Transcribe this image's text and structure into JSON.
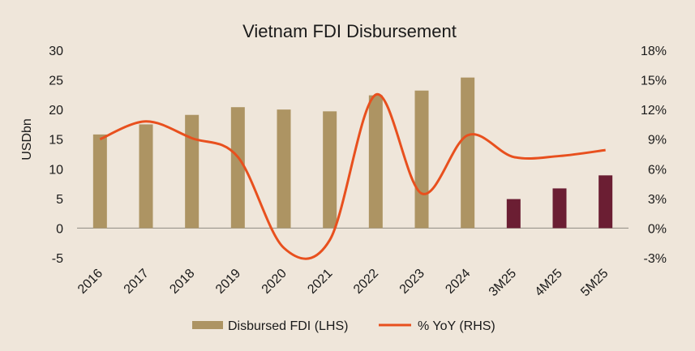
{
  "chart_data": {
    "type": "bar",
    "title": "Vietnam FDI Disbursement",
    "ylabel": "USDbn",
    "y2label": "",
    "categories": [
      "2016",
      "2017",
      "2018",
      "2019",
      "2020",
      "2021",
      "2022",
      "2023",
      "2024",
      "3M25",
      "4M25",
      "5M25"
    ],
    "ylim": [
      -5,
      30
    ],
    "yticks": [
      "-5",
      "0",
      "5",
      "10",
      "15",
      "20",
      "25",
      "30"
    ],
    "y2lim": [
      -3,
      18
    ],
    "y2ticks": [
      "-3%",
      "0%",
      "3%",
      "6%",
      "9%",
      "12%",
      "15%",
      "18%"
    ],
    "series": [
      {
        "name": "Disbursed FDI (LHS)",
        "type": "bar",
        "axis": "left",
        "values": [
          15.8,
          17.5,
          19.1,
          20.4,
          20.0,
          19.7,
          22.4,
          23.2,
          25.4,
          4.9,
          6.7,
          8.9
        ]
      },
      {
        "name": "% YoY (RHS)",
        "type": "line",
        "axis": "right",
        "smooth": true,
        "values": [
          9.0,
          10.8,
          9.1,
          7.2,
          -2.0,
          -1.2,
          13.5,
          3.5,
          9.4,
          7.2,
          7.3,
          7.9
        ]
      }
    ],
    "colors": {
      "bar_annual": "#ad9463",
      "bar_monthly": "#6b1e33",
      "line": "#e8501e",
      "axis": "#8f8a82",
      "background": "#efe6da"
    },
    "grid": false,
    "legend_position": "bottom"
  }
}
